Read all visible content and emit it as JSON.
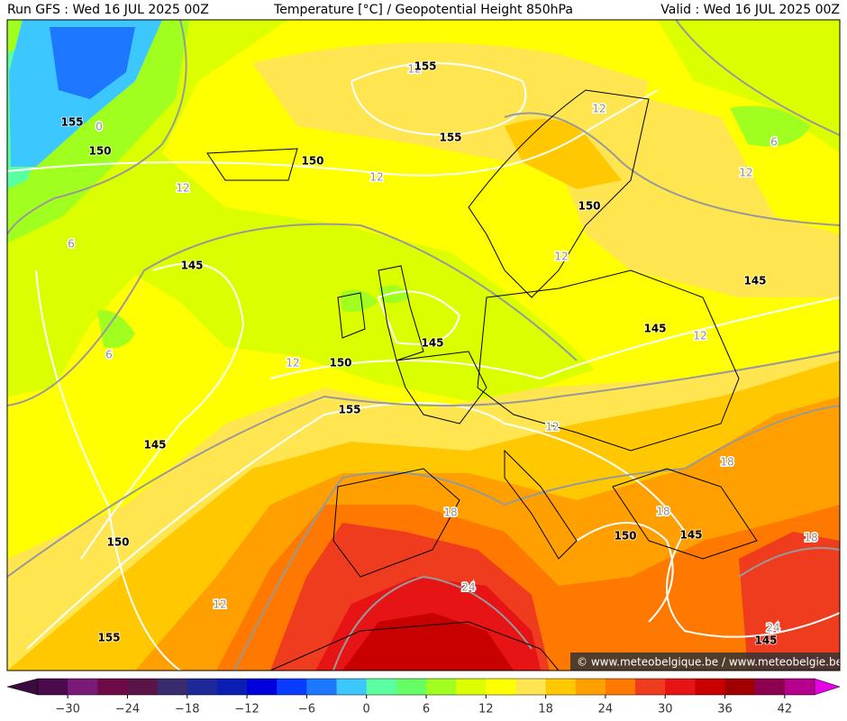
{
  "header": {
    "run": "Run GFS : Wed 16 JUL 2025 00Z",
    "title": "Temperature [°C] / Geopotential Height 850hPa",
    "valid": "Valid : Wed 16 JUL 2025 00Z"
  },
  "map": {
    "height_labels": [
      155,
      155,
      150,
      155,
      150,
      145,
      150,
      145,
      145,
      150,
      145,
      155,
      145,
      150,
      155,
      150,
      145,
      145
    ],
    "temperature_labels": [
      12,
      12,
      6,
      12,
      12,
      12,
      0,
      6,
      12,
      12,
      6,
      12,
      12,
      18,
      18,
      18,
      18,
      24,
      12,
      24
    ],
    "credit": "© www.meteobelgique.be / www.meteobelgie.be"
  },
  "colorbar": {
    "lim": [
      -33,
      45
    ],
    "colors": [
      "#4b0a4b",
      "#7a1a78",
      "#6e0a46",
      "#5a1448",
      "#3c2a6e",
      "#1e2896",
      "#0a1eb4",
      "#0000dc",
      "#0a3cff",
      "#1e78ff",
      "#3cc8ff",
      "#5affa0",
      "#64ff64",
      "#a0ff1e",
      "#dcff00",
      "#ffff00",
      "#ffe650",
      "#ffc800",
      "#ffa000",
      "#ff7800",
      "#f03c1e",
      "#e61414",
      "#c80000",
      "#a00000",
      "#8c0050",
      "#b4008c"
    ],
    "ticks": [
      {
        "value": -30,
        "label": "−30"
      },
      {
        "value": -24,
        "label": "−24"
      },
      {
        "value": -18,
        "label": "−18"
      },
      {
        "value": -12,
        "label": "−12"
      },
      {
        "value": -6,
        "label": "−6"
      },
      0,
      6,
      12,
      18,
      24,
      30,
      36,
      42
    ]
  }
}
